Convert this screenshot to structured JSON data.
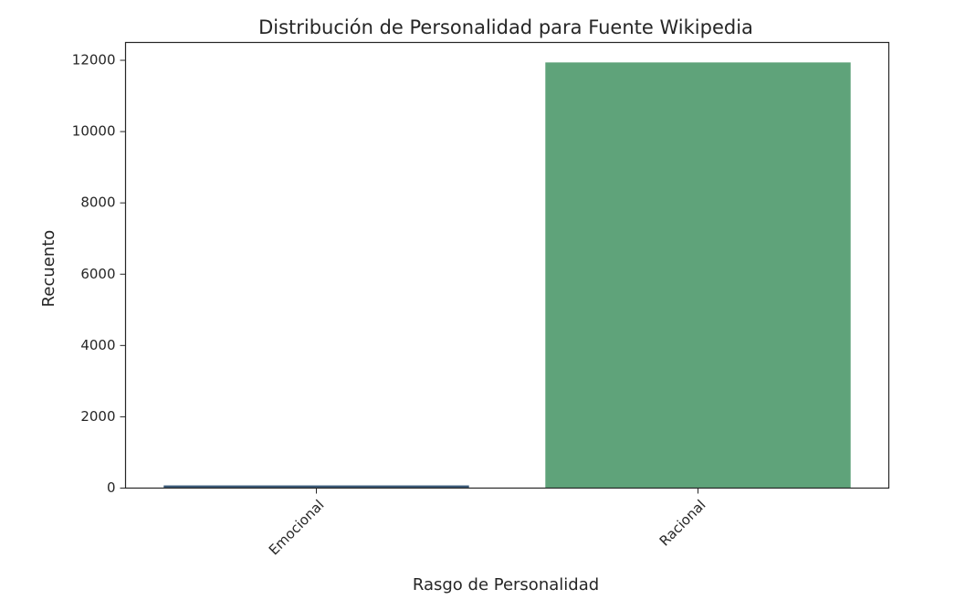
{
  "chart_data": {
    "type": "bar",
    "title": "Distribución de Personalidad para Fuente Wikipedia",
    "xlabel": "Rasgo de Personalidad",
    "ylabel": "Recuento",
    "categories": [
      "Emocional",
      "Racional"
    ],
    "values": [
      75,
      11940
    ],
    "colors": [
      "#3b5a78",
      "#5fa37a"
    ],
    "ylim": [
      0,
      12500
    ],
    "yticks": [
      "0",
      "2000",
      "4000",
      "6000",
      "8000",
      "10000",
      "12000"
    ],
    "grid": false,
    "legend": "none"
  }
}
